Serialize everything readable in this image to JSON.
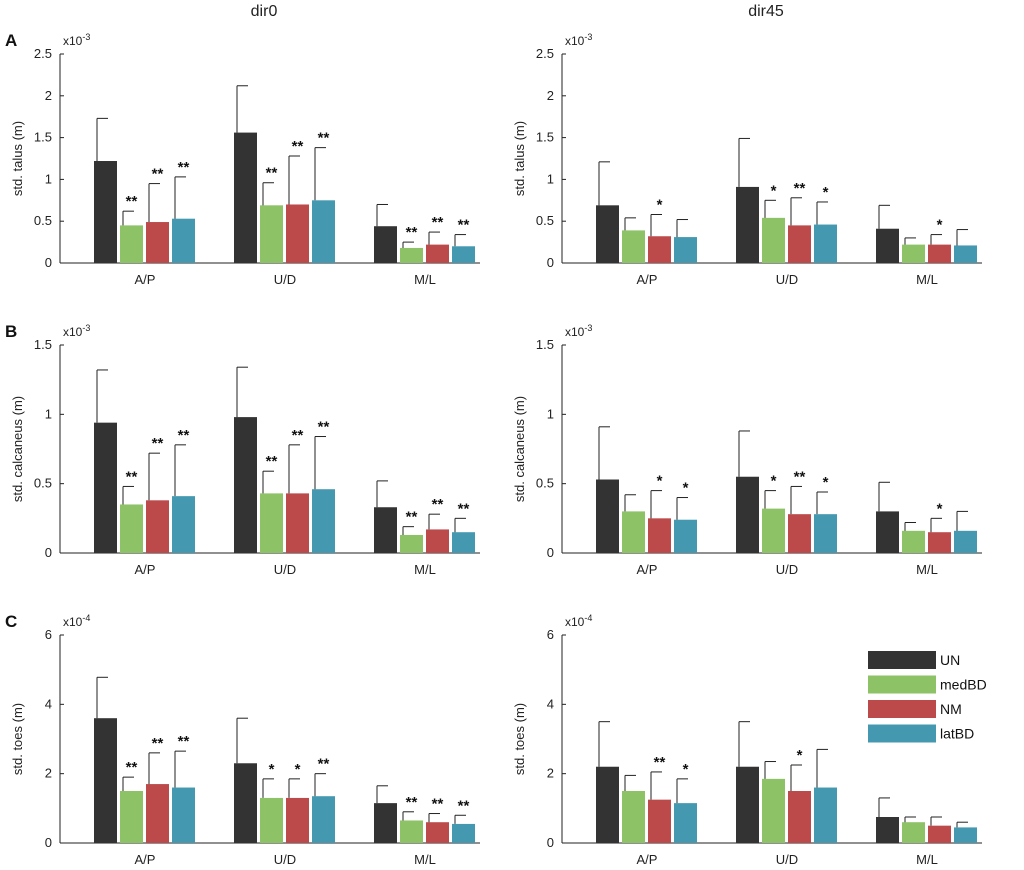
{
  "columns": [
    "dir0",
    "dir45"
  ],
  "colors": {
    "UN": "#333333",
    "medBD": "#8dc267",
    "NM": "#bd4a4a",
    "latBD": "#4499b0"
  },
  "legend": [
    {
      "key": "UN",
      "label": "UN"
    },
    {
      "key": "medBD",
      "label": "medBD"
    },
    {
      "key": "NM",
      "label": "NM"
    },
    {
      "key": "latBD",
      "label": "latBD"
    }
  ],
  "chart_data": [
    {
      "id": "A-dir0",
      "type": "bar",
      "row": "A",
      "column": "dir0",
      "ylabel": "std. talus (m)",
      "multiplier_base": "x10",
      "multiplier_exp": "-3",
      "ylim": [
        0,
        2.5
      ],
      "yticks": [
        "0",
        "0.5",
        "1",
        "1.5",
        "2",
        "2.5"
      ],
      "ytick_values": [
        0,
        0.5,
        1,
        1.5,
        2,
        2.5
      ],
      "categories": [
        "A/P",
        "U/D",
        "M/L"
      ],
      "series": [
        {
          "name": "UN",
          "values": [
            1.22,
            1.56,
            0.44
          ],
          "errors": [
            0.51,
            0.56,
            0.26
          ],
          "sig": [
            "",
            "",
            ""
          ]
        },
        {
          "name": "medBD",
          "values": [
            0.45,
            0.69,
            0.18
          ],
          "errors": [
            0.17,
            0.27,
            0.07
          ],
          "sig": [
            "**",
            "**",
            "**"
          ]
        },
        {
          "name": "NM",
          "values": [
            0.49,
            0.7,
            0.22
          ],
          "errors": [
            0.46,
            0.58,
            0.15
          ],
          "sig": [
            "**",
            "**",
            "**"
          ]
        },
        {
          "name": "latBD",
          "values": [
            0.53,
            0.75,
            0.2
          ],
          "errors": [
            0.5,
            0.63,
            0.14
          ],
          "sig": [
            "**",
            "**",
            "**"
          ]
        }
      ]
    },
    {
      "id": "A-dir45",
      "type": "bar",
      "row": "A",
      "column": "dir45",
      "ylabel": "std. talus (m)",
      "multiplier_base": "x10",
      "multiplier_exp": "-3",
      "ylim": [
        0,
        2.5
      ],
      "yticks": [
        "0",
        "0.5",
        "1",
        "1.5",
        "2",
        "2.5"
      ],
      "ytick_values": [
        0,
        0.5,
        1,
        1.5,
        2,
        2.5
      ],
      "categories": [
        "A/P",
        "U/D",
        "M/L"
      ],
      "series": [
        {
          "name": "UN",
          "values": [
            0.69,
            0.91,
            0.41
          ],
          "errors": [
            0.52,
            0.58,
            0.28
          ],
          "sig": [
            "",
            "",
            ""
          ]
        },
        {
          "name": "medBD",
          "values": [
            0.39,
            0.54,
            0.22
          ],
          "errors": [
            0.15,
            0.21,
            0.08
          ],
          "sig": [
            "",
            "*",
            ""
          ]
        },
        {
          "name": "NM",
          "values": [
            0.32,
            0.45,
            0.22
          ],
          "errors": [
            0.26,
            0.33,
            0.12
          ],
          "sig": [
            "*",
            "**",
            "*"
          ]
        },
        {
          "name": "latBD",
          "values": [
            0.31,
            0.46,
            0.21
          ],
          "errors": [
            0.21,
            0.27,
            0.19
          ],
          "sig": [
            "",
            "*",
            ""
          ]
        }
      ]
    },
    {
      "id": "B-dir0",
      "type": "bar",
      "row": "B",
      "column": "dir0",
      "ylabel": "std. calcaneus (m)",
      "multiplier_base": "x10",
      "multiplier_exp": "-3",
      "ylim": [
        0,
        1.5
      ],
      "yticks": [
        "0",
        "0.5",
        "1",
        "1.5"
      ],
      "ytick_values": [
        0,
        0.5,
        1,
        1.5
      ],
      "categories": [
        "A/P",
        "U/D",
        "M/L"
      ],
      "series": [
        {
          "name": "UN",
          "values": [
            0.94,
            0.98,
            0.33
          ],
          "errors": [
            0.38,
            0.36,
            0.19
          ],
          "sig": [
            "",
            "",
            ""
          ]
        },
        {
          "name": "medBD",
          "values": [
            0.35,
            0.43,
            0.13
          ],
          "errors": [
            0.13,
            0.16,
            0.06
          ],
          "sig": [
            "**",
            "**",
            "**"
          ]
        },
        {
          "name": "NM",
          "values": [
            0.38,
            0.43,
            0.17
          ],
          "errors": [
            0.34,
            0.35,
            0.11
          ],
          "sig": [
            "**",
            "**",
            "**"
          ]
        },
        {
          "name": "latBD",
          "values": [
            0.41,
            0.46,
            0.15
          ],
          "errors": [
            0.37,
            0.38,
            0.1
          ],
          "sig": [
            "**",
            "**",
            "**"
          ]
        }
      ]
    },
    {
      "id": "B-dir45",
      "type": "bar",
      "row": "B",
      "column": "dir45",
      "ylabel": "std. calcaneus (m)",
      "multiplier_base": "x10",
      "multiplier_exp": "-3",
      "ylim": [
        0,
        1.5
      ],
      "yticks": [
        "0",
        "0.5",
        "1",
        "1.5"
      ],
      "ytick_values": [
        0,
        0.5,
        1,
        1.5
      ],
      "categories": [
        "A/P",
        "U/D",
        "M/L"
      ],
      "series": [
        {
          "name": "UN",
          "values": [
            0.53,
            0.55,
            0.3
          ],
          "errors": [
            0.38,
            0.33,
            0.21
          ],
          "sig": [
            "",
            "",
            ""
          ]
        },
        {
          "name": "medBD",
          "values": [
            0.3,
            0.32,
            0.16
          ],
          "errors": [
            0.12,
            0.13,
            0.06
          ],
          "sig": [
            "",
            "*",
            ""
          ]
        },
        {
          "name": "NM",
          "values": [
            0.25,
            0.28,
            0.15
          ],
          "errors": [
            0.2,
            0.2,
            0.1
          ],
          "sig": [
            "*",
            "**",
            "*"
          ]
        },
        {
          "name": "latBD",
          "values": [
            0.24,
            0.28,
            0.16
          ],
          "errors": [
            0.16,
            0.16,
            0.14
          ],
          "sig": [
            "*",
            "*",
            ""
          ]
        }
      ]
    },
    {
      "id": "C-dir0",
      "type": "bar",
      "row": "C",
      "column": "dir0",
      "ylabel": "std. toes (m)",
      "multiplier_base": "x10",
      "multiplier_exp": "-4",
      "ylim": [
        0,
        6
      ],
      "yticks": [
        "0",
        "2",
        "4",
        "6"
      ],
      "ytick_values": [
        0,
        2,
        4,
        6
      ],
      "categories": [
        "A/P",
        "U/D",
        "M/L"
      ],
      "series": [
        {
          "name": "UN",
          "values": [
            3.6,
            2.3,
            1.15
          ],
          "errors": [
            1.18,
            1.3,
            0.5
          ],
          "sig": [
            "",
            "",
            ""
          ]
        },
        {
          "name": "medBD",
          "values": [
            1.5,
            1.3,
            0.65
          ],
          "errors": [
            0.4,
            0.55,
            0.25
          ],
          "sig": [
            "**",
            "*",
            "**"
          ]
        },
        {
          "name": "NM",
          "values": [
            1.7,
            1.3,
            0.6
          ],
          "errors": [
            0.9,
            0.55,
            0.25
          ],
          "sig": [
            "**",
            "*",
            "**"
          ]
        },
        {
          "name": "latBD",
          "values": [
            1.6,
            1.35,
            0.55
          ],
          "errors": [
            1.05,
            0.65,
            0.25
          ],
          "sig": [
            "**",
            "**",
            "**"
          ]
        }
      ]
    },
    {
      "id": "C-dir45",
      "type": "bar",
      "row": "C",
      "column": "dir45",
      "ylabel": "std. toes (m)",
      "multiplier_base": "x10",
      "multiplier_exp": "-4",
      "ylim": [
        0,
        6
      ],
      "yticks": [
        "0",
        "2",
        "4",
        "6"
      ],
      "ytick_values": [
        0,
        2,
        4,
        6
      ],
      "categories": [
        "A/P",
        "U/D",
        "M/L"
      ],
      "series": [
        {
          "name": "UN",
          "values": [
            2.2,
            2.2,
            0.75
          ],
          "errors": [
            1.3,
            1.3,
            0.55
          ],
          "sig": [
            "",
            "",
            ""
          ]
        },
        {
          "name": "medBD",
          "values": [
            1.5,
            1.85,
            0.6
          ],
          "errors": [
            0.45,
            0.5,
            0.15
          ],
          "sig": [
            "",
            "",
            ""
          ]
        },
        {
          "name": "NM",
          "values": [
            1.25,
            1.5,
            0.5
          ],
          "errors": [
            0.8,
            0.75,
            0.25
          ],
          "sig": [
            "**",
            "*",
            ""
          ]
        },
        {
          "name": "latBD",
          "values": [
            1.15,
            1.6,
            0.45
          ],
          "errors": [
            0.7,
            1.1,
            0.15
          ],
          "sig": [
            "*",
            "",
            ""
          ]
        }
      ]
    }
  ]
}
